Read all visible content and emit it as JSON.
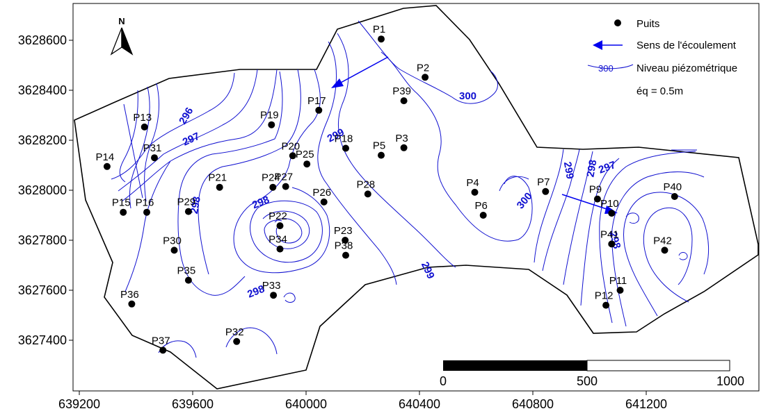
{
  "map": {
    "x_axis_ticks": [
      "639200",
      "639600",
      "640000",
      "640400",
      "640800",
      "641200"
    ],
    "y_axis_ticks": [
      "3628600",
      "3628400",
      "3628200",
      "3628000",
      "3627800",
      "3627600",
      "3627400"
    ],
    "north_label": "N",
    "legend": {
      "wells_label": "Puits",
      "flow_label": "Sens de l'écoulement",
      "contour_sample_value": "300",
      "contour_label": "Niveau piézométrique",
      "interval_label": "éq = 0.5m"
    },
    "scale_bar": {
      "labels": [
        "0",
        "500",
        "1000"
      ]
    },
    "contour_labels": [
      "296",
      "297",
      "298",
      "299",
      "300",
      "299",
      "298",
      "298",
      "299",
      "300",
      "298",
      "297",
      "298",
      "299",
      "300"
    ],
    "wells": [
      {
        "name": "P1",
        "x": 640265,
        "y": 3628605
      },
      {
        "name": "P2",
        "x": 640420,
        "y": 3628452
      },
      {
        "name": "P3",
        "x": 640345,
        "y": 3628170
      },
      {
        "name": "P4",
        "x": 640595,
        "y": 3627992
      },
      {
        "name": "P5",
        "x": 640265,
        "y": 3628140
      },
      {
        "name": "P6",
        "x": 640625,
        "y": 3627900
      },
      {
        "name": "P7",
        "x": 640845,
        "y": 3627995
      },
      {
        "name": "P9",
        "x": 641028,
        "y": 3627965
      },
      {
        "name": "P10",
        "x": 641078,
        "y": 3627908
      },
      {
        "name": "P11",
        "x": 641108,
        "y": 3627600
      },
      {
        "name": "P12",
        "x": 641058,
        "y": 3627540
      },
      {
        "name": "P13",
        "x": 639430,
        "y": 3628253
      },
      {
        "name": "P14",
        "x": 639298,
        "y": 3628095
      },
      {
        "name": "P15",
        "x": 639355,
        "y": 3627912
      },
      {
        "name": "P16",
        "x": 639438,
        "y": 3627912
      },
      {
        "name": "P17",
        "x": 640045,
        "y": 3628320
      },
      {
        "name": "P18",
        "x": 640140,
        "y": 3628168
      },
      {
        "name": "P19",
        "x": 639878,
        "y": 3628262
      },
      {
        "name": "P20",
        "x": 639953,
        "y": 3628138
      },
      {
        "name": "P21",
        "x": 639695,
        "y": 3628012
      },
      {
        "name": "P22",
        "x": 639908,
        "y": 3627858
      },
      {
        "name": "P23",
        "x": 640138,
        "y": 3627800
      },
      {
        "name": "P24",
        "x": 639883,
        "y": 3628012
      },
      {
        "name": "P25",
        "x": 640003,
        "y": 3628105
      },
      {
        "name": "P26",
        "x": 640063,
        "y": 3627953
      },
      {
        "name": "P27",
        "x": 639928,
        "y": 3628015
      },
      {
        "name": "P28",
        "x": 640218,
        "y": 3627985
      },
      {
        "name": "P29",
        "x": 639585,
        "y": 3627915
      },
      {
        "name": "P30",
        "x": 639535,
        "y": 3627760
      },
      {
        "name": "P31",
        "x": 639465,
        "y": 3628130
      },
      {
        "name": "P32",
        "x": 639755,
        "y": 3627395
      },
      {
        "name": "P33",
        "x": 639885,
        "y": 3627580
      },
      {
        "name": "P34",
        "x": 639908,
        "y": 3627765
      },
      {
        "name": "P35",
        "x": 639585,
        "y": 3627640
      },
      {
        "name": "P36",
        "x": 639385,
        "y": 3627545
      },
      {
        "name": "P37",
        "x": 639495,
        "y": 3627360
      },
      {
        "name": "P38",
        "x": 640140,
        "y": 3627740
      },
      {
        "name": "P39",
        "x": 640345,
        "y": 3628358
      },
      {
        "name": "P40",
        "x": 641300,
        "y": 3627975
      },
      {
        "name": "P41",
        "x": 641078,
        "y": 3627785
      },
      {
        "name": "P42",
        "x": 641265,
        "y": 3627760
      }
    ]
  }
}
